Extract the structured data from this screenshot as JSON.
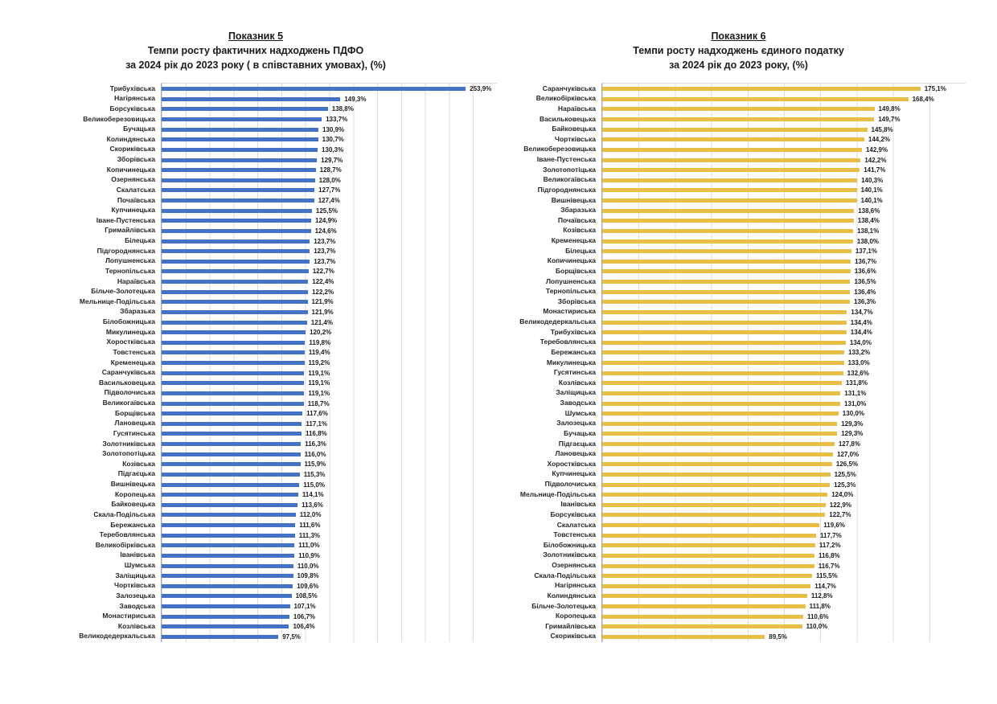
{
  "page": {
    "background": "#ffffff"
  },
  "chart_data": [
    {
      "type": "bar",
      "orientation": "horizontal",
      "title": "Показник 5",
      "subtitle": "Темпи росту фактичних надходжень ПДФО",
      "subtitle2": "за 2024 рік до 2023 року ( в співставних умовах), (%)",
      "xlabel": "",
      "ylabel": "",
      "value_suffix": "%",
      "decimal_separator": ",",
      "bar_color": "#4472C4",
      "grid": true,
      "grid_step": 20,
      "xlim": [
        0,
        280
      ],
      "legend": "none",
      "categories": [
        "Трибухівська",
        "Нагірянська",
        "Борсуківська",
        "Великоберезовицька",
        "Бучацька",
        "Колиндянська",
        "Скориківська",
        "Зборівська",
        "Копичинецька",
        "Озернянська",
        "Скалатська",
        "Почаївська",
        "Купчинецька",
        "Іване-Пустенська",
        "Гримайлівська",
        "Білецька",
        "Підгороднянська",
        "Лопушненська",
        "Тернопільська",
        "Нараївська",
        "Більче-Золотецька",
        "Мельнице-Подільська",
        "Збаразька",
        "Білобожницька",
        "Микулинецька",
        "Хоростківська",
        "Товстенська",
        "Кременецька",
        "Саранчуківська",
        "Васильковецька",
        "Підволочиська",
        "Великогаївська",
        "Борщівська",
        "Лановецька",
        "Гусятинська",
        "Золотниківська",
        "Золотопотіцька",
        "Козівська",
        "Підгаєцька",
        "Вишнівецька",
        "Коропецька",
        "Байковецька",
        "Скала-Подільська",
        "Бережанська",
        "Теребовлянська",
        "Великобірківська",
        "Іванівська",
        "Шумська",
        "Заліщицька",
        "Чортківська",
        "Залозецька",
        "Заводська",
        "Монастириська",
        "Козлівська",
        "Великодедеркальська"
      ],
      "values": [
        253.9,
        149.3,
        138.8,
        133.7,
        130.9,
        130.7,
        130.3,
        129.7,
        128.7,
        128.0,
        127.7,
        127.4,
        125.5,
        124.9,
        124.6,
        123.7,
        123.7,
        123.7,
        122.7,
        122.4,
        122.2,
        121.9,
        121.9,
        121.4,
        120.2,
        119.8,
        119.4,
        119.2,
        119.1,
        119.1,
        119.1,
        118.7,
        117.6,
        117.1,
        116.8,
        116.3,
        116.0,
        115.9,
        115.3,
        115.0,
        114.1,
        113.6,
        112.0,
        111.6,
        111.3,
        111.0,
        110.9,
        110.0,
        109.8,
        109.6,
        108.5,
        107.1,
        106.7,
        106.4,
        97.5
      ]
    },
    {
      "type": "bar",
      "orientation": "horizontal",
      "title": "Показник 6",
      "subtitle": "Темпи росту надходжень єдиного податку",
      "subtitle2": "за 2024 рік до 2023 року, (%)",
      "xlabel": "",
      "ylabel": "",
      "value_suffix": "%",
      "decimal_separator": ",",
      "bar_color": "#E8BE46",
      "grid": true,
      "grid_step": 20,
      "xlim": [
        0,
        200
      ],
      "legend": "none",
      "categories": [
        "Саранчуківська",
        "Великобірківська",
        "Нараївська",
        "Васильковецька",
        "Байковецька",
        "Чортківська",
        "Великоберезовицька",
        "Іване-Пустенська",
        "Золотопотіцька",
        "Великогаївська",
        "Підгороднянська",
        "Вишнівецька",
        "Збаразька",
        "Почаївська",
        "Козівська",
        "Кременецька",
        "Білецька",
        "Копичинецька",
        "Борщівська",
        "Лопушненська",
        "Тернопільська",
        "Зборівська",
        "Монастириська",
        "Великодедеркальська",
        "Трибухівська",
        "Теребовлянська",
        "Бережанська",
        "Микулинецька",
        "Гусятинська",
        "Козлівська",
        "Заліщицька",
        "Заводська",
        "Шумська",
        "Залозецька",
        "Бучацька",
        "Підгаєцька",
        "Лановецька",
        "Хоростківська",
        "Купчинецька",
        "Підволочиська",
        "Мельнице-Подільська",
        "Іванівська",
        "Борсуківська",
        "Скалатська",
        "Товстенська",
        "Білобожницька",
        "Золотниківська",
        "Озернянська",
        "Скала-Подільська",
        "Нагірянська",
        "Колиндянська",
        "Більче-Золотецька",
        "Коропецька",
        "Гримайлівська",
        "Скориківська"
      ],
      "values": [
        175.1,
        168.4,
        149.8,
        149.7,
        145.8,
        144.2,
        142.9,
        142.2,
        141.7,
        140.3,
        140.1,
        140.1,
        138.6,
        138.4,
        138.1,
        138.0,
        137.1,
        136.7,
        136.6,
        136.5,
        136.4,
        136.3,
        134.7,
        134.4,
        134.4,
        134.0,
        133.2,
        133.0,
        132.6,
        131.8,
        131.1,
        131.0,
        130.0,
        129.3,
        129.3,
        127.8,
        127.0,
        126.5,
        125.5,
        125.3,
        124.0,
        122.9,
        122.7,
        119.6,
        117.7,
        117.2,
        116.8,
        116.7,
        115.5,
        114.7,
        112.8,
        111.8,
        110.6,
        110.0,
        89.5
      ]
    }
  ]
}
